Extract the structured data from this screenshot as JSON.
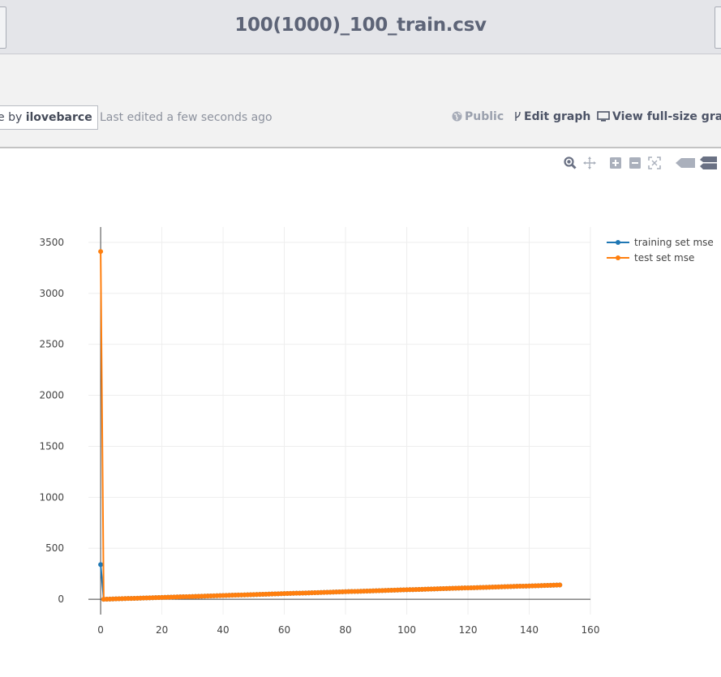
{
  "header": {
    "title": "100(1000)_100_train.csv"
  },
  "infobar": {
    "save_prefix": "e by ",
    "owner": "ilovebarce",
    "last_edited": "Last edited a few seconds ago",
    "public_label": "Public",
    "edit_label": "Edit graph",
    "fullsize_label": "View full-size graph"
  },
  "modebar": {
    "icons": [
      "zoom-icon",
      "pan-icon",
      "zoom-in-icon",
      "zoom-out-icon",
      "autoscale-icon",
      "hover-closest-icon",
      "hover-compare-icon"
    ]
  },
  "chart_data": {
    "type": "line",
    "xlim": [
      -4,
      160
    ],
    "ylim": [
      -150,
      3650
    ],
    "x_ticks": [
      0,
      20,
      40,
      60,
      80,
      100,
      120,
      140,
      160
    ],
    "y_ticks": [
      0,
      500,
      1000,
      1500,
      2000,
      2500,
      3000,
      3500
    ],
    "grid": true,
    "legend_position": "top-right",
    "series": [
      {
        "name": "training set mse",
        "color": "#1f77b4",
        "x": [
          0,
          1,
          150
        ],
        "y": [
          340,
          0,
          140
        ]
      },
      {
        "name": "test set mse",
        "color": "#ff7f0e",
        "x": [
          0,
          1,
          150
        ],
        "y": [
          3410,
          0,
          140
        ]
      }
    ]
  }
}
